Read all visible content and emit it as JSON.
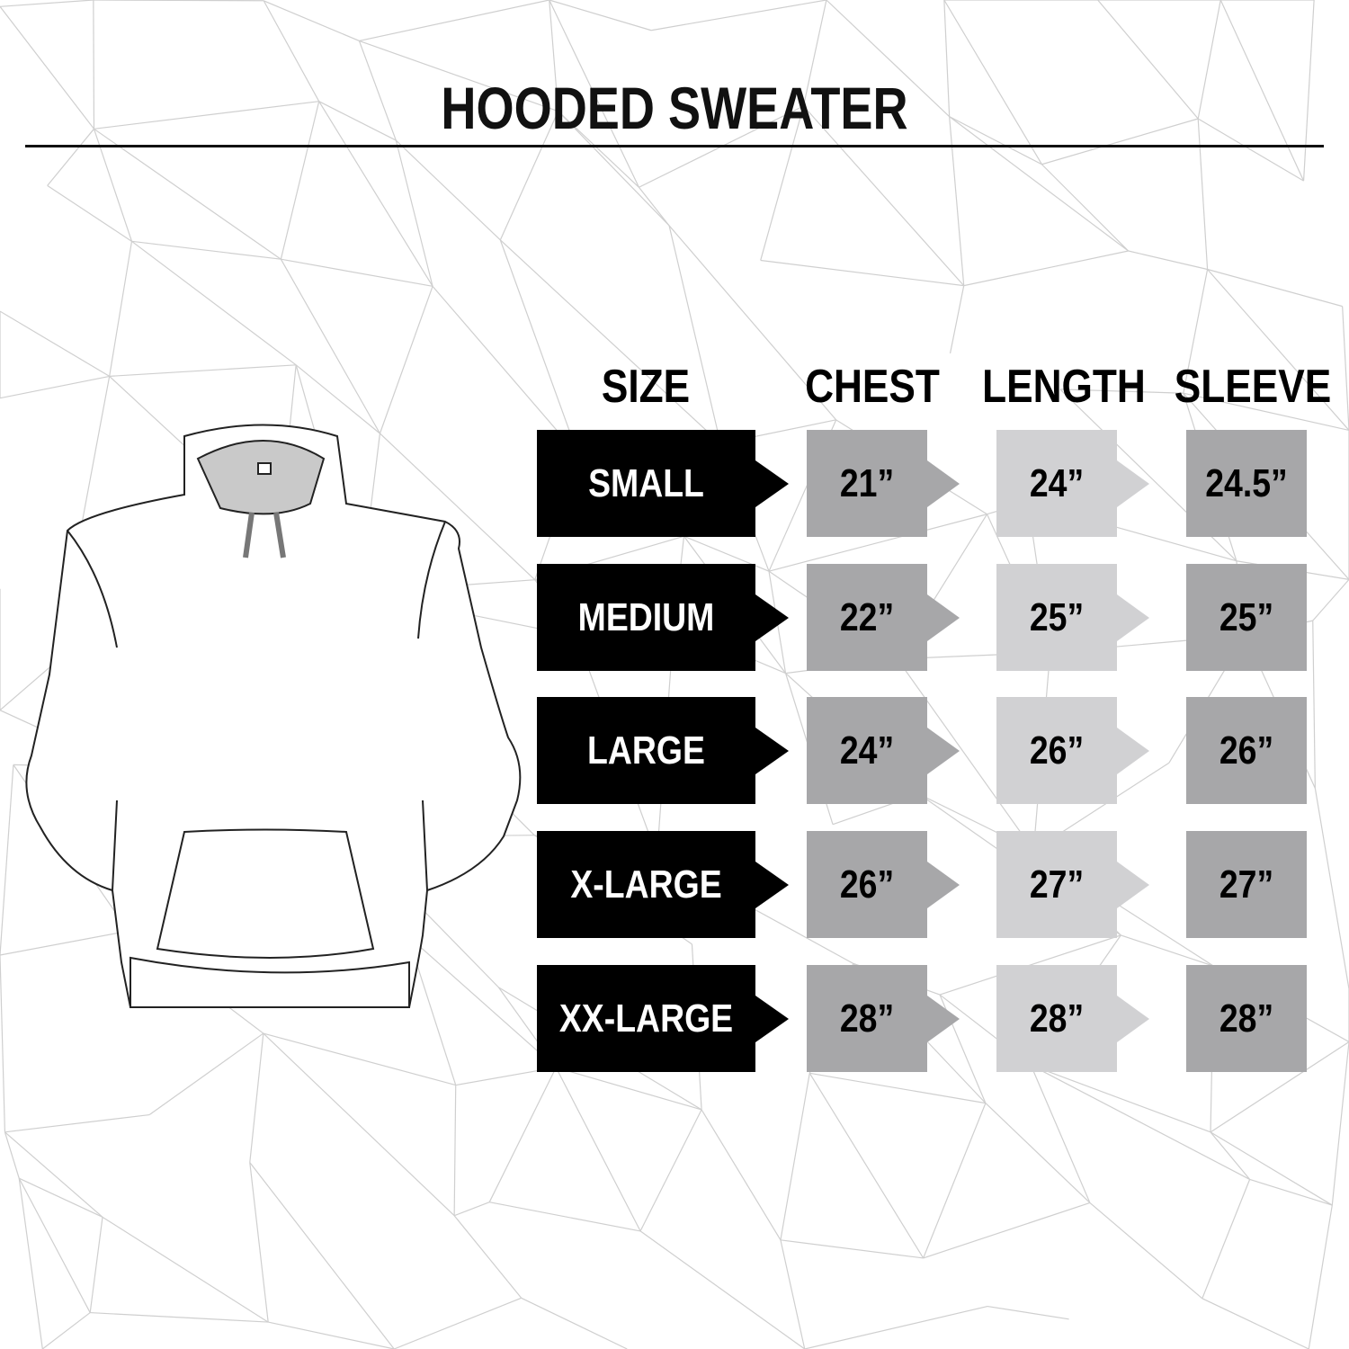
{
  "title": "HOODED SWEATER",
  "colors": {
    "size_box": "#000000",
    "chest_box": "#a7a7a9",
    "length_box": "#d1d1d3",
    "sleeve_box": "#a7a7a9",
    "background_lines": "#cfcfcf"
  },
  "illustration": "hoodie-outline",
  "headers": {
    "size": "SIZE",
    "chest": "CHEST",
    "length": "LENGTH",
    "sleeve": "SLEEVE"
  },
  "rows": [
    {
      "size": "SMALL",
      "chest": "21”",
      "length": "24”",
      "sleeve": "24.5”"
    },
    {
      "size": "MEDIUM",
      "chest": "22”",
      "length": "25”",
      "sleeve": "25”"
    },
    {
      "size": "LARGE",
      "chest": "24”",
      "length": "26”",
      "sleeve": "26”"
    },
    {
      "size": "X-LARGE",
      "chest": "26”",
      "length": "27”",
      "sleeve": "27”"
    },
    {
      "size": "XX-LARGE",
      "chest": "28”",
      "length": "28”",
      "sleeve": "28”"
    }
  ]
}
